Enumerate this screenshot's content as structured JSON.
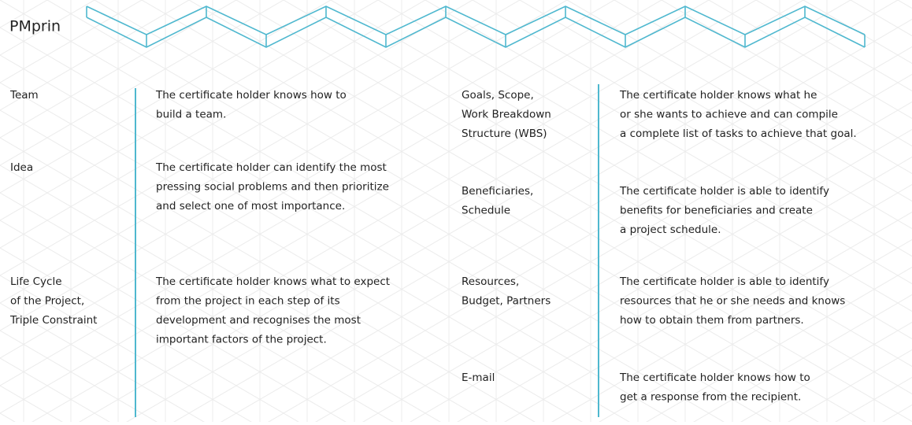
{
  "header": {
    "title": "PMprin"
  },
  "left": [
    {
      "term": [
        "Team"
      ],
      "description": [
        "The certificate holder knows how to",
        "build a team."
      ]
    },
    {
      "term": [
        "Idea"
      ],
      "description": [
        "The certificate holder can identify the most",
        "pressing social problems and then prioritize",
        "and select one of most importance."
      ]
    },
    {
      "term": [
        "Life Cycle",
        "of the Project,",
        "Triple Constraint"
      ],
      "description": [
        "The certificate holder knows what to expect",
        "from the project in each step of its",
        "development and recognises the most",
        "important factors of the project."
      ]
    }
  ],
  "right": [
    {
      "term": [
        "Goals, Scope,",
        "Work Breakdown",
        "Structure (WBS)"
      ],
      "description": [
        "The certificate holder knows what he",
        "or she wants to achieve and can compile",
        "a complete list of tasks to achieve that goal."
      ]
    },
    {
      "term": [
        "Beneficiaries,",
        "Schedule"
      ],
      "description": [
        "The certificate holder is able to identify",
        "benefits for beneficiaries and create",
        "a project schedule."
      ]
    },
    {
      "term": [
        "Resources,",
        "Budget, Partners"
      ],
      "description": [
        "The certificate holder is able to identify",
        "resources that he or she needs and knows",
        "how to obtain them from partners."
      ]
    },
    {
      "term": [
        "E-mail"
      ],
      "description": [
        "The certificate holder knows how to",
        "get a response from the recipient."
      ]
    }
  ]
}
